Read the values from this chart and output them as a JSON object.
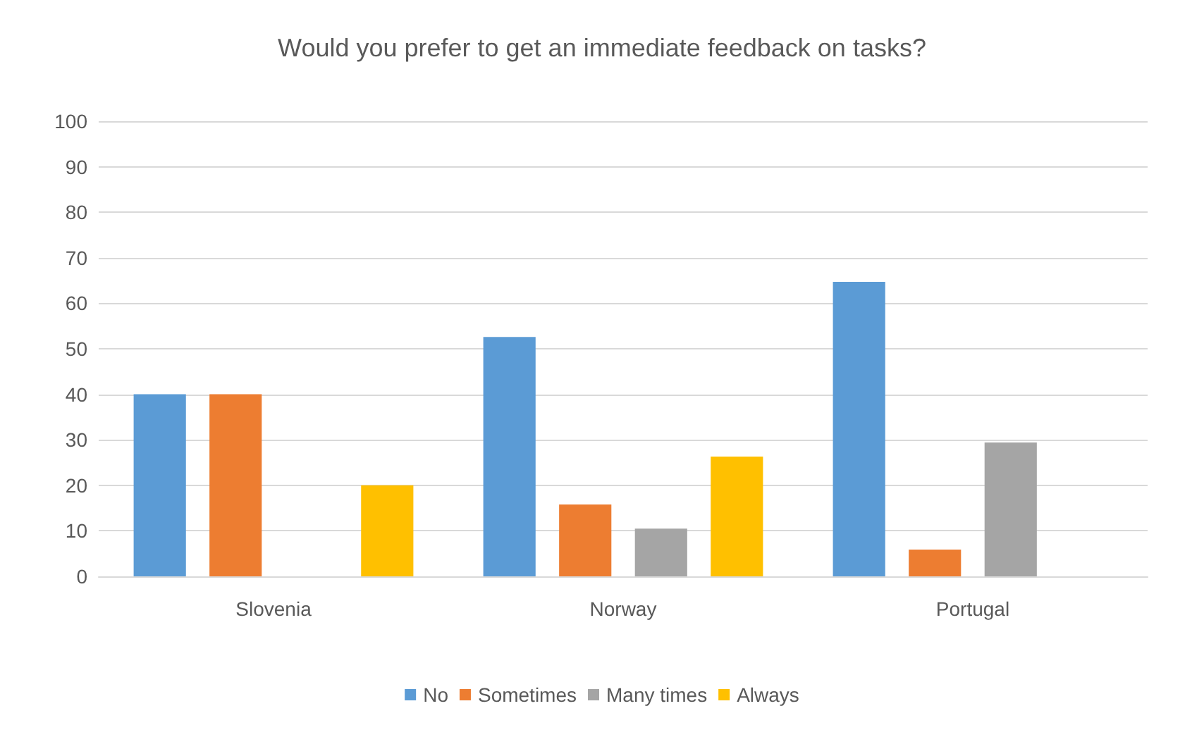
{
  "chart_data": {
    "type": "bar",
    "title": "Would you prefer to get an immediate feedback on tasks?",
    "categories": [
      "Slovenia",
      "Norway",
      "Portugal"
    ],
    "series": [
      {
        "name": "No",
        "color": "#5b9bd5",
        "values": [
          40,
          52.6,
          64.7
        ]
      },
      {
        "name": "Sometimes",
        "color": "#ed7d31",
        "values": [
          40,
          15.8,
          5.9
        ]
      },
      {
        "name": "Many times",
        "color": "#a5a5a5",
        "values": [
          0,
          10.5,
          29.4
        ]
      },
      {
        "name": "Always",
        "color": "#ffc000",
        "values": [
          20,
          26.3,
          0
        ]
      }
    ],
    "ylim": [
      0,
      100
    ],
    "yticks": [
      0,
      10,
      20,
      30,
      40,
      50,
      60,
      70,
      80,
      90,
      100
    ],
    "grid": "y",
    "legend": "bottom"
  }
}
